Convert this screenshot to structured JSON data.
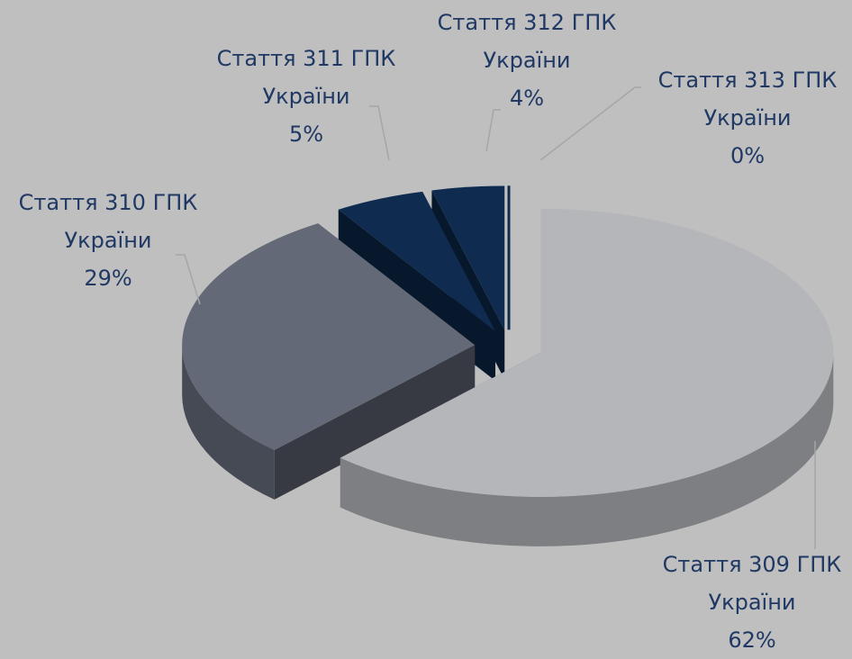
{
  "chart_data": {
    "type": "pie",
    "categories": [
      "Стаття 309 ГПК України",
      "Стаття 310 ГПК України",
      "Стаття 311 ГПК України",
      "Стаття 312 ГПК України",
      "Стаття 313 ГПК України"
    ],
    "values": [
      62,
      29,
      5,
      4,
      0
    ],
    "value_labels": [
      "62%",
      "29%",
      "5%",
      "4%",
      "0%"
    ],
    "colors": [
      "#b4b6ba",
      "#646978",
      "#0f2b50",
      "#0f2b50",
      "#0f2b50"
    ]
  }
}
